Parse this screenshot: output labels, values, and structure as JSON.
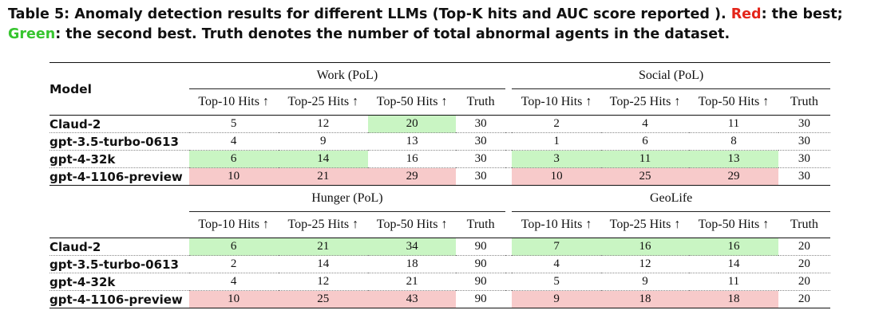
{
  "caption": {
    "prefix": "Table 5: Anomaly detection results for different LLMs (Top-K hits and AUC score reported ). ",
    "red_word": "Red",
    "middle": ": the best; ",
    "green_word": "Green",
    "suffix": ": the second best. Truth denotes the number of total abnormal agents in the dataset."
  },
  "colors": {
    "best": "#f7caca",
    "second": "#c9f5c3",
    "red_text": "#e4261b",
    "green_text": "#37c52f"
  },
  "table": {
    "model_header": "Model",
    "columns": [
      "Top-10 Hits ↑",
      "Top-25 Hits ↑",
      "Top-50 Hits ↑",
      "Truth"
    ],
    "blocks": [
      {
        "left_title": "Work (PoL)",
        "right_title": "Social (PoL)",
        "rows": [
          {
            "model": "Claud-2",
            "left": [
              "5",
              "12",
              "20",
              "30"
            ],
            "right": [
              "2",
              "4",
              "11",
              "30"
            ],
            "left_hl": [
              "",
              "",
              "g",
              ""
            ],
            "right_hl": [
              "",
              "",
              "",
              ""
            ]
          },
          {
            "model": "gpt-3.5-turbo-0613",
            "left": [
              "4",
              "9",
              "13",
              "30"
            ],
            "right": [
              "1",
              "6",
              "8",
              "30"
            ],
            "left_hl": [
              "",
              "",
              "",
              ""
            ],
            "right_hl": [
              "",
              "",
              "",
              ""
            ]
          },
          {
            "model": "gpt-4-32k",
            "left": [
              "6",
              "14",
              "16",
              "30"
            ],
            "right": [
              "3",
              "11",
              "13",
              "30"
            ],
            "left_hl": [
              "g",
              "g",
              "",
              ""
            ],
            "right_hl": [
              "g",
              "g",
              "g",
              ""
            ]
          },
          {
            "model": "gpt-4-1106-preview",
            "left": [
              "10",
              "21",
              "29",
              "30"
            ],
            "right": [
              "10",
              "25",
              "29",
              "30"
            ],
            "left_hl": [
              "r",
              "r",
              "r",
              ""
            ],
            "right_hl": [
              "r",
              "r",
              "r",
              ""
            ]
          }
        ]
      },
      {
        "left_title": "Hunger (PoL)",
        "right_title": "GeoLife",
        "rows": [
          {
            "model": "Claud-2",
            "left": [
              "6",
              "21",
              "34",
              "90"
            ],
            "right": [
              "7",
              "16",
              "16",
              "20"
            ],
            "left_hl": [
              "g",
              "g",
              "g",
              ""
            ],
            "right_hl": [
              "g",
              "g",
              "g",
              ""
            ]
          },
          {
            "model": "gpt-3.5-turbo-0613",
            "left": [
              "2",
              "14",
              "18",
              "90"
            ],
            "right": [
              "4",
              "12",
              "14",
              "20"
            ],
            "left_hl": [
              "",
              "",
              "",
              ""
            ],
            "right_hl": [
              "",
              "",
              "",
              ""
            ]
          },
          {
            "model": "gpt-4-32k",
            "left": [
              "4",
              "12",
              "21",
              "90"
            ],
            "right": [
              "5",
              "9",
              "11",
              "20"
            ],
            "left_hl": [
              "",
              "",
              "",
              ""
            ],
            "right_hl": [
              "",
              "",
              "",
              ""
            ]
          },
          {
            "model": "gpt-4-1106-preview",
            "left": [
              "10",
              "25",
              "43",
              "90"
            ],
            "right": [
              "9",
              "18",
              "18",
              "20"
            ],
            "left_hl": [
              "r",
              "r",
              "r",
              ""
            ],
            "right_hl": [
              "r",
              "r",
              "r",
              ""
            ]
          }
        ]
      }
    ]
  }
}
